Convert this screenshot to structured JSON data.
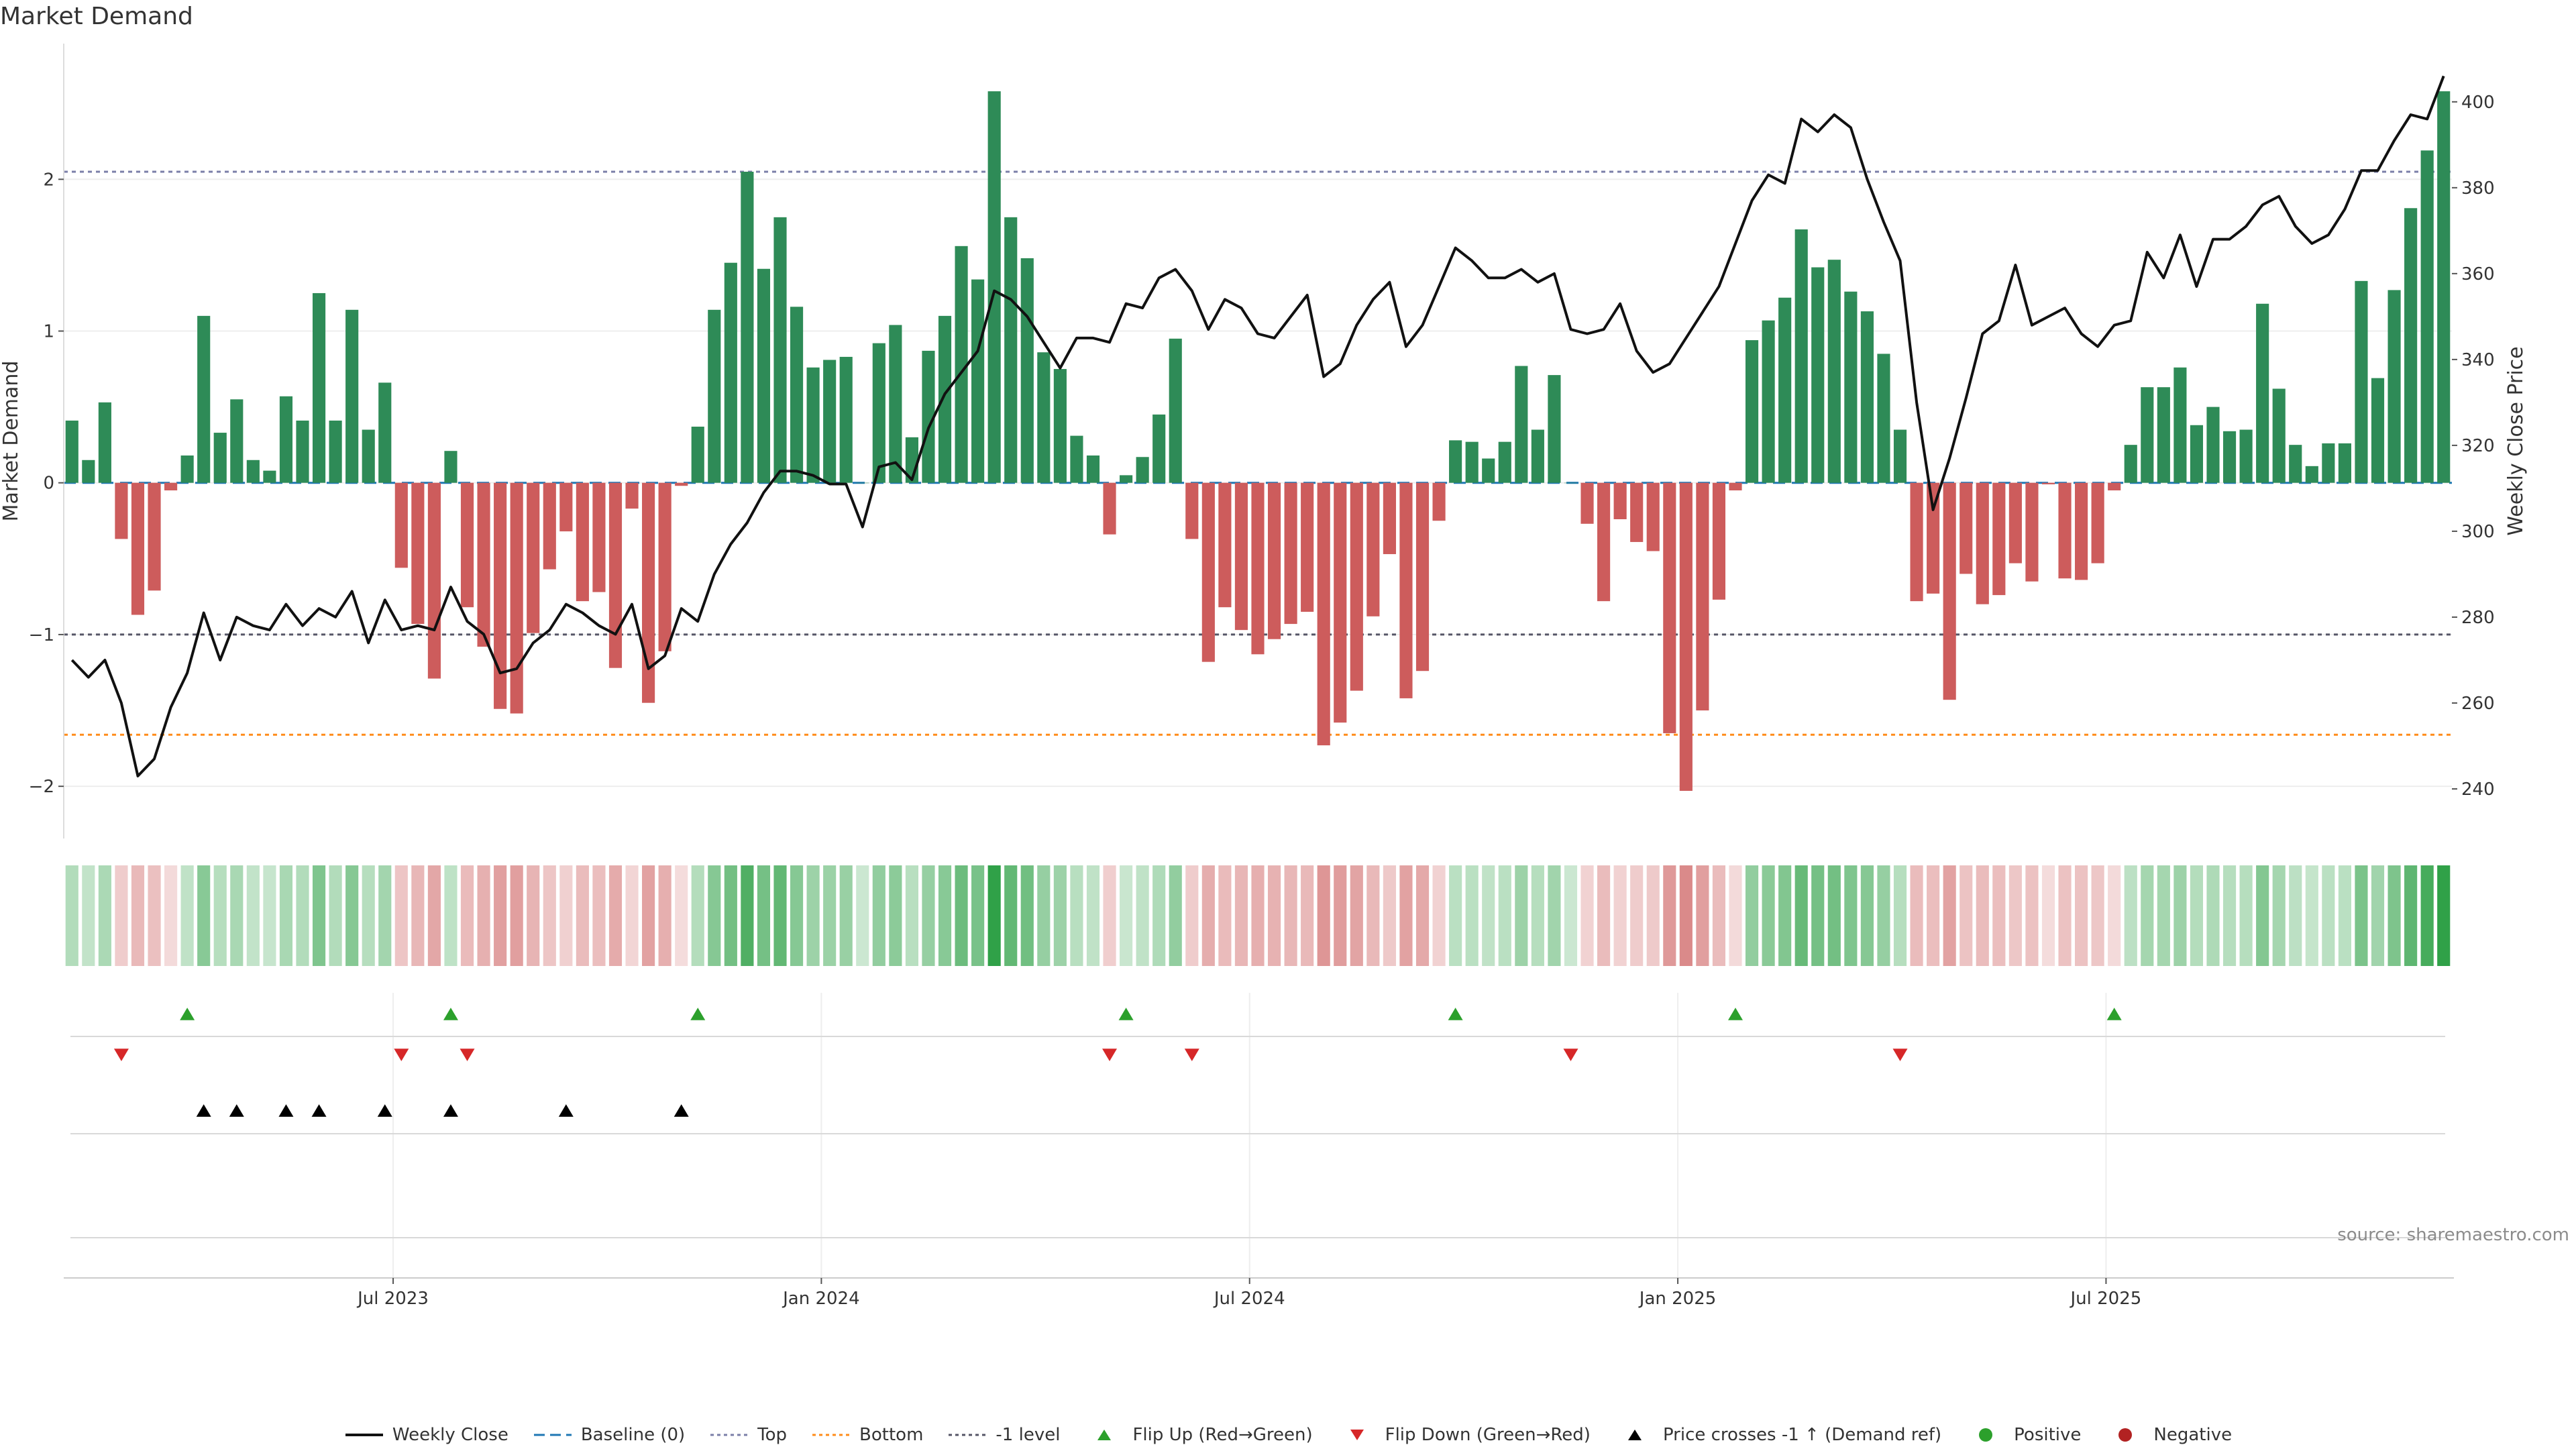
{
  "title": "Market Demand",
  "source": "source: sharemaestro.com",
  "colors": {
    "positive": "#2e8b57",
    "negative": "#cd5c5c",
    "price": "#111111",
    "baseline": "#1f77b4",
    "top": "#7b7fa8",
    "bottom": "#ff8c1a",
    "minus1": "#555566",
    "flip_up": "#2ca02c",
    "flip_down": "#d62728",
    "cross": "#000000",
    "pos_dot": "#2ca02c",
    "neg_dot": "#b22222"
  },
  "chart_data": {
    "type": "bar",
    "title": "Market Demand",
    "ylabel_left": "Market Demand",
    "ylabel_right": "Weekly Close Price",
    "ylim_left": [
      -2.3,
      2.85
    ],
    "ylim_right": [
      230,
      412
    ],
    "yticks_left": [
      -2,
      -1,
      0,
      1,
      2
    ],
    "ytick_labels_left": [
      "−2",
      "−1",
      "0",
      "1",
      "2"
    ],
    "yticks_right": [
      240,
      260,
      280,
      300,
      320,
      340,
      360,
      380,
      400
    ],
    "x_tick_weeks": [
      20,
      46,
      72,
      98,
      124
    ],
    "x_tick_labels": [
      "Jul 2023",
      "Jan 2024",
      "Jul 2024",
      "Jan 2025",
      "Jul 2025"
    ],
    "reference_lines": {
      "top": 2.05,
      "bottom": -1.66,
      "minus1": -1.0,
      "baseline": 0
    },
    "demand": [
      0.41,
      0.15,
      0.53,
      -0.37,
      -0.87,
      -0.71,
      -0.05,
      0.18,
      1.1,
      0.33,
      0.55,
      0.15,
      0.08,
      0.57,
      0.41,
      1.25,
      0.41,
      1.14,
      0.35,
      0.66,
      -0.56,
      -0.93,
      -1.29,
      0.21,
      -0.82,
      -1.08,
      -1.49,
      -1.52,
      -0.99,
      -0.57,
      -0.32,
      -0.78,
      -0.72,
      -1.22,
      -0.17,
      -1.45,
      -1.11,
      -0.02,
      0.37,
      1.14,
      1.45,
      2.05,
      1.41,
      1.75,
      1.16,
      0.76,
      0.81,
      0.83,
      0.0,
      0.92,
      1.04,
      0.3,
      0.87,
      1.1,
      1.56,
      1.34,
      2.58,
      1.75,
      1.48,
      0.86,
      0.75,
      0.31,
      0.18,
      -0.34,
      0.05,
      0.17,
      0.45,
      0.95,
      -0.37,
      -1.18,
      -0.82,
      -0.97,
      -1.13,
      -1.03,
      -0.93,
      -0.85,
      -1.73,
      -1.58,
      -1.37,
      -0.88,
      -0.47,
      -1.42,
      -1.24,
      -0.25,
      0.28,
      0.27,
      0.16,
      0.27,
      0.77,
      0.35,
      0.71,
      0.0,
      -0.27,
      -0.78,
      -0.24,
      -0.39,
      -0.45,
      -1.65,
      -2.03,
      -1.5,
      -0.77,
      -0.05,
      0.94,
      1.07,
      1.22,
      1.67,
      1.42,
      1.47,
      1.26,
      1.13,
      0.85,
      0.35,
      -0.78,
      -0.73,
      -1.43,
      -0.6,
      -0.8,
      -0.74,
      -0.53,
      -0.65,
      -0.01,
      -0.63,
      -0.64,
      -0.53,
      -0.05,
      0.25,
      0.63,
      0.63,
      0.76,
      0.38,
      0.5,
      0.34,
      0.35,
      1.18,
      0.62,
      0.25,
      0.11,
      0.26,
      0.26,
      1.33,
      0.69,
      1.27,
      1.81,
      2.19,
      2.58
    ],
    "weekly_close": [
      270,
      266,
      270,
      260,
      243,
      247,
      259,
      267,
      281,
      270,
      280,
      278,
      277,
      283,
      278,
      282,
      280,
      286,
      274,
      284,
      277,
      278,
      277,
      287,
      279,
      276,
      267,
      268,
      274,
      277,
      283,
      281,
      278,
      276,
      283,
      268,
      271,
      282,
      279,
      290,
      297,
      302,
      309,
      314,
      314,
      313,
      311,
      311,
      301,
      315,
      316,
      312,
      324,
      332,
      337,
      342,
      356,
      354,
      350,
      344,
      338,
      345,
      345,
      344,
      353,
      352,
      359,
      361,
      356,
      347,
      354,
      352,
      346,
      345,
      350,
      355,
      336,
      339,
      348,
      354,
      358,
      343,
      348,
      357,
      366,
      363,
      359,
      359,
      361,
      358,
      360,
      347,
      346,
      347,
      353,
      342,
      337,
      339,
      345,
      351,
      357,
      367,
      377,
      383,
      381,
      396,
      393,
      397,
      394,
      382,
      372,
      363,
      330,
      305,
      317,
      331,
      346,
      349,
      362,
      348,
      350,
      352,
      346,
      343,
      348,
      349,
      365,
      359,
      369,
      357,
      368,
      368,
      371,
      376,
      378,
      371,
      367,
      369,
      375,
      384,
      384,
      391,
      397,
      396,
      406
    ],
    "flip_up_weeks": [
      7,
      23,
      38,
      64,
      84,
      101,
      124
    ],
    "flip_down_weeks": [
      3,
      20,
      24,
      63,
      68,
      91,
      111
    ],
    "price_cross_weeks": [
      8,
      10,
      13,
      15,
      19,
      23,
      30,
      37
    ],
    "series": [
      {
        "name": "Weekly Close"
      },
      {
        "name": "Baseline (0)"
      },
      {
        "name": "Top"
      },
      {
        "name": "Bottom"
      },
      {
        "name": "-1 level"
      },
      {
        "name": "Flip Up (Red→Green)"
      },
      {
        "name": "Flip Down (Green→Red)"
      },
      {
        "name": "Price crosses -1 ↑ (Demand ref)"
      },
      {
        "name": "Positive"
      },
      {
        "name": "Negative"
      }
    ]
  },
  "legend": [
    {
      "key": "price",
      "label": "Weekly Close"
    },
    {
      "key": "baseline",
      "label": "Baseline (0)"
    },
    {
      "key": "top",
      "label": "Top"
    },
    {
      "key": "bottom",
      "label": "Bottom"
    },
    {
      "key": "minus1",
      "label": "-1 level"
    },
    {
      "key": "flip_up",
      "label": "Flip Up (Red→Green)"
    },
    {
      "key": "flip_down",
      "label": "Flip Down (Green→Red)"
    },
    {
      "key": "cross",
      "label": "Price crosses -1 ↑ (Demand ref)"
    },
    {
      "key": "pos_dot",
      "label": "Positive"
    },
    {
      "key": "neg_dot",
      "label": "Negative"
    }
  ]
}
